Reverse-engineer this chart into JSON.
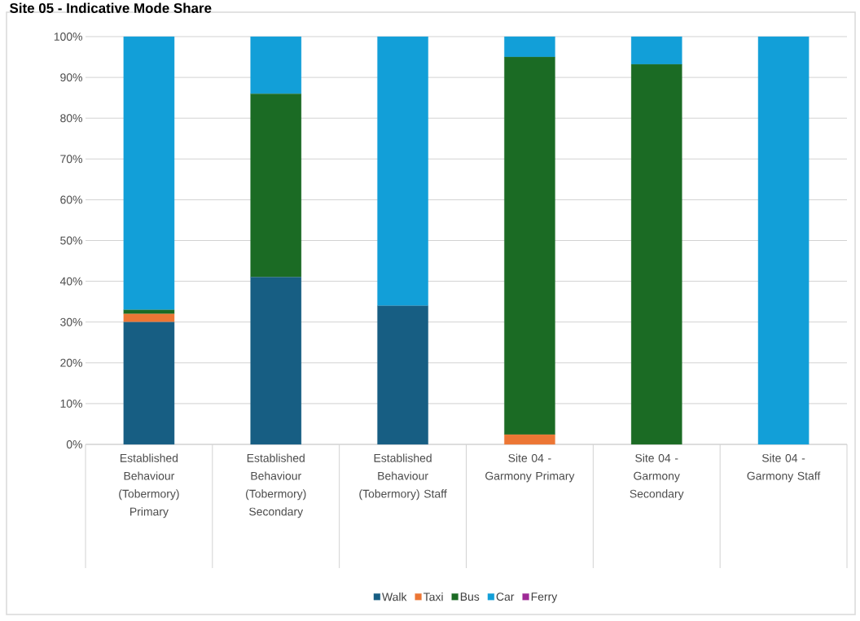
{
  "chart_data": {
    "type": "bar",
    "stacked": true,
    "title": "Site 05 - Indicative Mode Share",
    "categories": [
      "Established Behaviour (Tobermory) Primary",
      "Established Behaviour (Tobermory) Secondary",
      "Established Behaviour (Tobermory) Staff",
      "Site 04 - Garmony Primary",
      "Site 04 - Garmony Secondary",
      "Site 04 - Garmony Staff"
    ],
    "series": [
      {
        "name": "Walk",
        "color": "#175e83",
        "values": [
          30,
          41,
          34,
          0,
          0,
          0
        ]
      },
      {
        "name": "Taxi",
        "color": "#ec7634",
        "values": [
          2,
          0,
          0,
          2.4,
          0,
          0
        ]
      },
      {
        "name": "Bus",
        "color": "#1b6b24",
        "values": [
          1,
          45,
          0,
          92.6,
          93.2,
          0
        ]
      },
      {
        "name": "Car",
        "color": "#129fd8",
        "values": [
          67,
          14,
          66,
          5,
          6.8,
          100
        ]
      },
      {
        "name": "Ferry",
        "color": "#9e2a96",
        "values": [
          0,
          0,
          0,
          0,
          0,
          0
        ]
      }
    ],
    "ylim": [
      0,
      100
    ],
    "yticks": [
      {
        "value": 0,
        "label": "0%"
      },
      {
        "value": 10,
        "label": "10%"
      },
      {
        "value": 20,
        "label": "20%"
      },
      {
        "value": 30,
        "label": "30%"
      },
      {
        "value": 40,
        "label": "40%"
      },
      {
        "value": 50,
        "label": "50%"
      },
      {
        "value": 60,
        "label": "60%"
      },
      {
        "value": 70,
        "label": "70%"
      },
      {
        "value": 80,
        "label": "80%"
      },
      {
        "value": 90,
        "label": "90%"
      },
      {
        "value": 100,
        "label": "100%"
      }
    ],
    "grid": "y",
    "legend": "bottom"
  }
}
